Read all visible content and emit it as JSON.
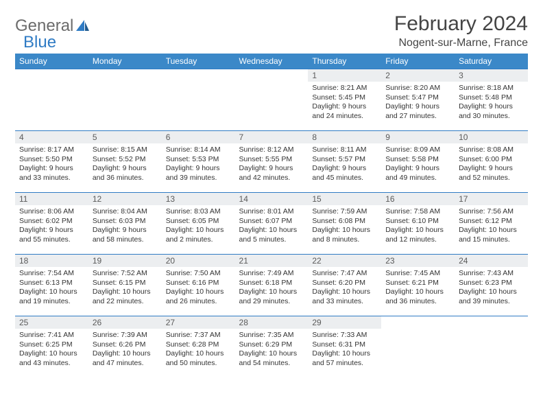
{
  "brand": {
    "part1": "General",
    "part2": "Blue"
  },
  "title": "February 2024",
  "location": "Nogent-sur-Marne, France",
  "colors": {
    "header_bg": "#3b88c8",
    "border": "#2f7bc4",
    "daynum_bg": "#eceef0",
    "text": "#333333",
    "title": "#444444",
    "logo_gray": "#6b6b6b"
  },
  "day_headers": [
    "Sunday",
    "Monday",
    "Tuesday",
    "Wednesday",
    "Thursday",
    "Friday",
    "Saturday"
  ],
  "weeks": [
    [
      null,
      null,
      null,
      null,
      {
        "n": "1",
        "sr": "8:21 AM",
        "ss": "5:45 PM",
        "dl": "9 hours and 24 minutes."
      },
      {
        "n": "2",
        "sr": "8:20 AM",
        "ss": "5:47 PM",
        "dl": "9 hours and 27 minutes."
      },
      {
        "n": "3",
        "sr": "8:18 AM",
        "ss": "5:48 PM",
        "dl": "9 hours and 30 minutes."
      }
    ],
    [
      {
        "n": "4",
        "sr": "8:17 AM",
        "ss": "5:50 PM",
        "dl": "9 hours and 33 minutes."
      },
      {
        "n": "5",
        "sr": "8:15 AM",
        "ss": "5:52 PM",
        "dl": "9 hours and 36 minutes."
      },
      {
        "n": "6",
        "sr": "8:14 AM",
        "ss": "5:53 PM",
        "dl": "9 hours and 39 minutes."
      },
      {
        "n": "7",
        "sr": "8:12 AM",
        "ss": "5:55 PM",
        "dl": "9 hours and 42 minutes."
      },
      {
        "n": "8",
        "sr": "8:11 AM",
        "ss": "5:57 PM",
        "dl": "9 hours and 45 minutes."
      },
      {
        "n": "9",
        "sr": "8:09 AM",
        "ss": "5:58 PM",
        "dl": "9 hours and 49 minutes."
      },
      {
        "n": "10",
        "sr": "8:08 AM",
        "ss": "6:00 PM",
        "dl": "9 hours and 52 minutes."
      }
    ],
    [
      {
        "n": "11",
        "sr": "8:06 AM",
        "ss": "6:02 PM",
        "dl": "9 hours and 55 minutes."
      },
      {
        "n": "12",
        "sr": "8:04 AM",
        "ss": "6:03 PM",
        "dl": "9 hours and 58 minutes."
      },
      {
        "n": "13",
        "sr": "8:03 AM",
        "ss": "6:05 PM",
        "dl": "10 hours and 2 minutes."
      },
      {
        "n": "14",
        "sr": "8:01 AM",
        "ss": "6:07 PM",
        "dl": "10 hours and 5 minutes."
      },
      {
        "n": "15",
        "sr": "7:59 AM",
        "ss": "6:08 PM",
        "dl": "10 hours and 8 minutes."
      },
      {
        "n": "16",
        "sr": "7:58 AM",
        "ss": "6:10 PM",
        "dl": "10 hours and 12 minutes."
      },
      {
        "n": "17",
        "sr": "7:56 AM",
        "ss": "6:12 PM",
        "dl": "10 hours and 15 minutes."
      }
    ],
    [
      {
        "n": "18",
        "sr": "7:54 AM",
        "ss": "6:13 PM",
        "dl": "10 hours and 19 minutes."
      },
      {
        "n": "19",
        "sr": "7:52 AM",
        "ss": "6:15 PM",
        "dl": "10 hours and 22 minutes."
      },
      {
        "n": "20",
        "sr": "7:50 AM",
        "ss": "6:16 PM",
        "dl": "10 hours and 26 minutes."
      },
      {
        "n": "21",
        "sr": "7:49 AM",
        "ss": "6:18 PM",
        "dl": "10 hours and 29 minutes."
      },
      {
        "n": "22",
        "sr": "7:47 AM",
        "ss": "6:20 PM",
        "dl": "10 hours and 33 minutes."
      },
      {
        "n": "23",
        "sr": "7:45 AM",
        "ss": "6:21 PM",
        "dl": "10 hours and 36 minutes."
      },
      {
        "n": "24",
        "sr": "7:43 AM",
        "ss": "6:23 PM",
        "dl": "10 hours and 39 minutes."
      }
    ],
    [
      {
        "n": "25",
        "sr": "7:41 AM",
        "ss": "6:25 PM",
        "dl": "10 hours and 43 minutes."
      },
      {
        "n": "26",
        "sr": "7:39 AM",
        "ss": "6:26 PM",
        "dl": "10 hours and 47 minutes."
      },
      {
        "n": "27",
        "sr": "7:37 AM",
        "ss": "6:28 PM",
        "dl": "10 hours and 50 minutes."
      },
      {
        "n": "28",
        "sr": "7:35 AM",
        "ss": "6:29 PM",
        "dl": "10 hours and 54 minutes."
      },
      {
        "n": "29",
        "sr": "7:33 AM",
        "ss": "6:31 PM",
        "dl": "10 hours and 57 minutes."
      },
      null,
      null
    ]
  ],
  "labels": {
    "sunrise": "Sunrise:",
    "sunset": "Sunset:",
    "daylight": "Daylight:"
  }
}
